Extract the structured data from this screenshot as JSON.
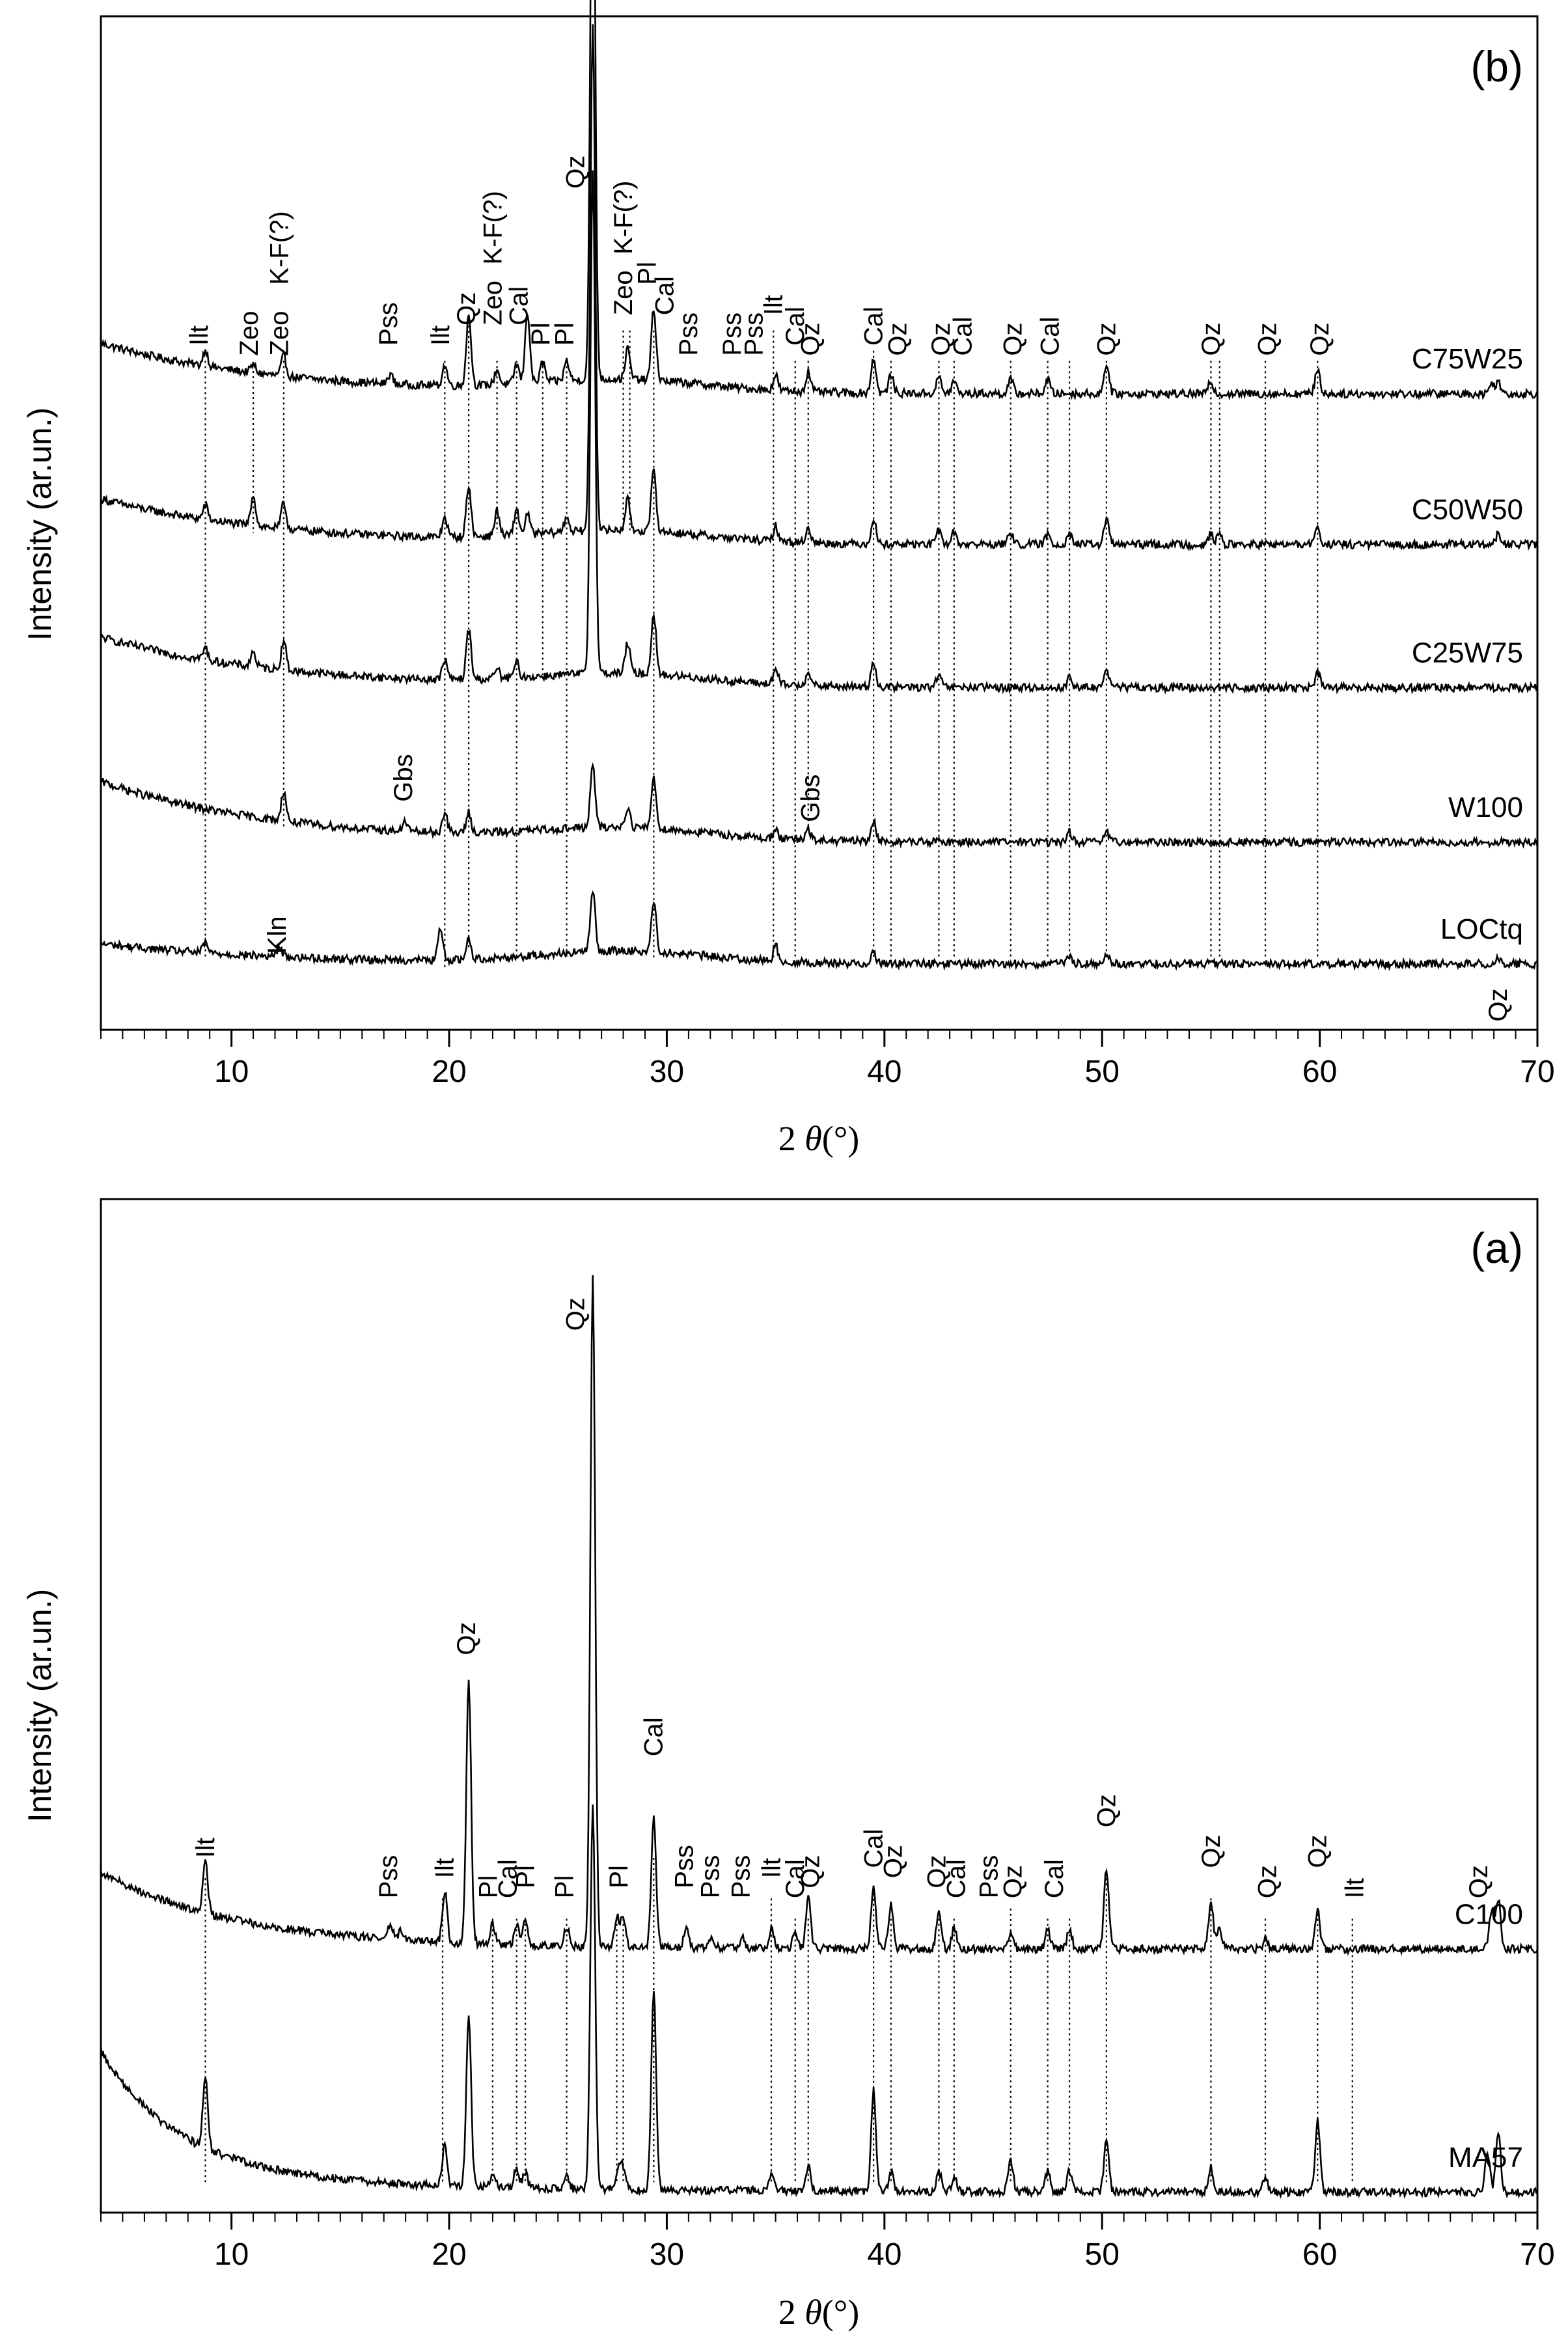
{
  "figure": {
    "x_ticks": [
      10,
      20,
      30,
      40,
      50,
      60,
      70
    ],
    "xlim": [
      4,
      70
    ]
  },
  "chart_data": [
    {
      "type": "line",
      "panel": "(b)",
      "xlabel_prefix": "2 ",
      "xlabel_theta": "θ",
      "xlabel_unit": "(°)",
      "ylabel": "Intensity (ar.un.)",
      "xlim": [
        4,
        70
      ],
      "grid": false,
      "series": [
        {
          "name": "C75W25",
          "offset": 0.64,
          "peaks": [
            [
              8.8,
              0.016
            ],
            [
              11.0,
              0.008
            ],
            [
              12.4,
              0.02
            ],
            [
              17.3,
              0.01
            ],
            [
              19.8,
              0.02
            ],
            [
              20.9,
              0.07
            ],
            [
              22.2,
              0.015
            ],
            [
              23.1,
              0.02
            ],
            [
              23.6,
              0.07
            ],
            [
              24.3,
              0.02
            ],
            [
              25.4,
              0.02
            ],
            [
              26.6,
              0.6
            ],
            [
              28.2,
              0.03
            ],
            [
              29.4,
              0.07
            ],
            [
              35.0,
              0.015
            ],
            [
              36.5,
              0.02
            ],
            [
              39.5,
              0.035
            ],
            [
              40.3,
              0.018
            ],
            [
              42.5,
              0.016
            ],
            [
              43.2,
              0.012
            ],
            [
              45.8,
              0.014
            ],
            [
              47.5,
              0.014
            ],
            [
              50.2,
              0.03
            ],
            [
              55.0,
              0.012
            ],
            [
              59.9,
              0.025
            ],
            [
              67.9,
              0.01
            ],
            [
              68.2,
              0.012
            ]
          ]
        },
        {
          "name": "C50W50",
          "offset": 0.49,
          "peaks": [
            [
              8.8,
              0.014
            ],
            [
              11.0,
              0.03
            ],
            [
              12.4,
              0.025
            ],
            [
              19.8,
              0.02
            ],
            [
              20.9,
              0.05
            ],
            [
              22.2,
              0.025
            ],
            [
              23.1,
              0.025
            ],
            [
              23.6,
              0.02
            ],
            [
              25.4,
              0.015
            ],
            [
              26.6,
              0.5
            ],
            [
              28.2,
              0.03
            ],
            [
              29.4,
              0.06
            ],
            [
              35.0,
              0.015
            ],
            [
              36.5,
              0.015
            ],
            [
              39.5,
              0.025
            ],
            [
              42.5,
              0.014
            ],
            [
              43.2,
              0.012
            ],
            [
              45.8,
              0.012
            ],
            [
              47.5,
              0.01
            ],
            [
              48.5,
              0.012
            ],
            [
              50.2,
              0.025
            ],
            [
              55.0,
              0.01
            ],
            [
              55.4,
              0.01
            ],
            [
              59.9,
              0.018
            ],
            [
              68.2,
              0.01
            ]
          ]
        },
        {
          "name": "C25W75",
          "offset": 0.35,
          "peaks": [
            [
              8.8,
              0.012
            ],
            [
              11.0,
              0.015
            ],
            [
              12.4,
              0.03
            ],
            [
              19.8,
              0.02
            ],
            [
              20.9,
              0.05
            ],
            [
              22.2,
              0.01
            ],
            [
              23.1,
              0.015
            ],
            [
              26.6,
              0.5
            ],
            [
              28.2,
              0.03
            ],
            [
              29.4,
              0.06
            ],
            [
              35.0,
              0.015
            ],
            [
              36.5,
              0.015
            ],
            [
              39.5,
              0.025
            ],
            [
              42.5,
              0.012
            ],
            [
              48.5,
              0.01
            ],
            [
              50.2,
              0.02
            ],
            [
              59.9,
              0.015
            ]
          ]
        },
        {
          "name": "W100",
          "offset": 0.2,
          "peaks": [
            [
              12.4,
              0.03
            ],
            [
              18.0,
              0.01
            ],
            [
              19.8,
              0.02
            ],
            [
              20.9,
              0.02
            ],
            [
              26.6,
              0.06
            ],
            [
              28.2,
              0.02
            ],
            [
              29.4,
              0.05
            ],
            [
              35.0,
              0.01
            ],
            [
              36.5,
              0.01
            ],
            [
              39.5,
              0.02
            ],
            [
              48.5,
              0.01
            ],
            [
              50.2,
              0.01
            ]
          ]
        },
        {
          "name": "LOCtq",
          "offset": 0.07,
          "peaks": [
            [
              8.8,
              0.01
            ],
            [
              12.2,
              0.01
            ],
            [
              19.6,
              0.03
            ],
            [
              20.9,
              0.02
            ],
            [
              26.6,
              0.06
            ],
            [
              29.4,
              0.05
            ],
            [
              35.0,
              0.015
            ],
            [
              39.5,
              0.012
            ],
            [
              48.5,
              0.008
            ],
            [
              50.2,
              0.01
            ],
            [
              68.2,
              0.006
            ]
          ]
        }
      ],
      "annotations": [
        "Ilt",
        "Zeo",
        "Zeo",
        "K-F(?)",
        "Pss",
        "Ilt",
        "Qz",
        "Zeo",
        "K-F(?)",
        "Cal",
        "Pl",
        "Pl",
        "Qz",
        "Zeo",
        "K-F(?)",
        "Pl",
        "Cal",
        "Pss",
        "Pss",
        "Pss",
        "Ilt",
        "Cal",
        "Qz",
        "Cal",
        "Qz",
        "Qz",
        "Cal",
        "Qz",
        "Cal",
        "Qz",
        "Qz",
        "Qz",
        "Qz",
        "Gbs",
        "Gbs",
        "Kln",
        "Qz"
      ]
    },
    {
      "type": "line",
      "panel": "(a)",
      "xlabel_prefix": "2 ",
      "xlabel_theta": "θ",
      "xlabel_unit": "(°)",
      "ylabel": "Intensity (ar.un.)",
      "xlim": [
        4,
        70
      ],
      "grid": false,
      "series": [
        {
          "name": "C100",
          "offset": 0.27,
          "peaks": [
            [
              8.8,
              0.05
            ],
            [
              17.3,
              0.015
            ],
            [
              17.8,
              0.01
            ],
            [
              19.8,
              0.05
            ],
            [
              20.9,
              0.26
            ],
            [
              22.0,
              0.02
            ],
            [
              23.1,
              0.02
            ],
            [
              23.5,
              0.025
            ],
            [
              25.4,
              0.02
            ],
            [
              26.6,
              0.66
            ],
            [
              27.7,
              0.03
            ],
            [
              28.0,
              0.03
            ],
            [
              29.4,
              0.13
            ],
            [
              30.9,
              0.02
            ],
            [
              32.1,
              0.01
            ],
            [
              33.5,
              0.01
            ],
            [
              34.8,
              0.02
            ],
            [
              35.9,
              0.015
            ],
            [
              36.5,
              0.05
            ],
            [
              39.5,
              0.06
            ],
            [
              40.3,
              0.045
            ],
            [
              42.5,
              0.04
            ],
            [
              43.2,
              0.02
            ],
            [
              45.8,
              0.015
            ],
            [
              47.5,
              0.02
            ],
            [
              48.5,
              0.02
            ],
            [
              50.2,
              0.08
            ],
            [
              55.0,
              0.045
            ],
            [
              55.4,
              0.02
            ],
            [
              57.5,
              0.01
            ],
            [
              59.9,
              0.04
            ],
            [
              67.9,
              0.04
            ],
            [
              68.2,
              0.05
            ]
          ]
        },
        {
          "name": "MA57",
          "offset": 0.02,
          "peaks": [
            [
              8.8,
              0.07
            ],
            [
              19.8,
              0.04
            ],
            [
              20.9,
              0.17
            ],
            [
              22.0,
              0.015
            ],
            [
              23.1,
              0.02
            ],
            [
              23.5,
              0.015
            ],
            [
              25.4,
              0.015
            ],
            [
              26.6,
              0.38
            ],
            [
              27.8,
              0.02
            ],
            [
              28.0,
              0.02
            ],
            [
              29.4,
              0.2
            ],
            [
              34.8,
              0.015
            ],
            [
              36.5,
              0.025
            ],
            [
              39.5,
              0.1
            ],
            [
              40.3,
              0.02
            ],
            [
              42.5,
              0.02
            ],
            [
              43.2,
              0.015
            ],
            [
              45.8,
              0.03
            ],
            [
              47.5,
              0.02
            ],
            [
              48.5,
              0.02
            ],
            [
              50.2,
              0.05
            ],
            [
              55.0,
              0.025
            ],
            [
              57.5,
              0.015
            ],
            [
              59.9,
              0.07
            ],
            [
              67.7,
              0.04
            ],
            [
              68.2,
              0.06
            ]
          ]
        }
      ],
      "annotations": [
        "Ilt",
        "Pss",
        "Ilt",
        "Qz",
        "Pl",
        "Cal",
        "Pl",
        "Pl",
        "Qz",
        "Pl",
        "Cal",
        "Pss",
        "Pss",
        "Pss",
        "Ilt",
        "Cal",
        "Qz",
        "Cal",
        "Qz",
        "Qz",
        "Cal",
        "Pss",
        "Qz",
        "Cal",
        "Qz",
        "Qz",
        "Qz",
        "Qz",
        "Ilt",
        "Qz"
      ]
    }
  ]
}
